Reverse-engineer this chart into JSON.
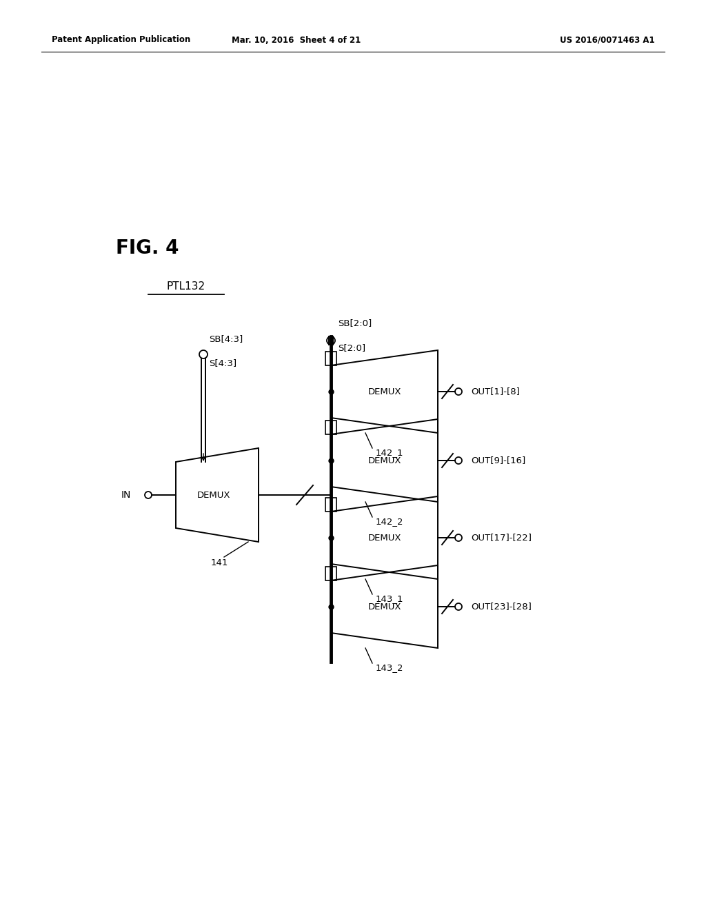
{
  "bg_color": "#ffffff",
  "header_left": "Patent Application Publication",
  "header_mid": "Mar. 10, 2016  Sheet 4 of 21",
  "header_right": "US 2016/0071463 A1",
  "fig_label": "FIG. 4",
  "ptl_label": "PTL132",
  "main_demux_label": "DEMUX",
  "main_demux_ref": "141",
  "in_label": "IN",
  "sb43_label": "SB[4:3]",
  "s43_label": "S[4:3]",
  "sb20_label": "SB[2:0]",
  "s20_label": "S[2:0]",
  "sub_demux_labels": [
    "DEMUX",
    "DEMUX",
    "DEMUX",
    "DEMUX"
  ],
  "sub_demux_refs": [
    "142_1",
    "142_2",
    "143_1",
    "143_2"
  ],
  "sub_demux_outs": [
    "OUT[1]-[8]",
    "OUT[9]-[16]",
    "OUT[17]-[22]",
    "OUT[23]-[28]"
  ],
  "lw": 1.4,
  "lw_bus": 3.5
}
